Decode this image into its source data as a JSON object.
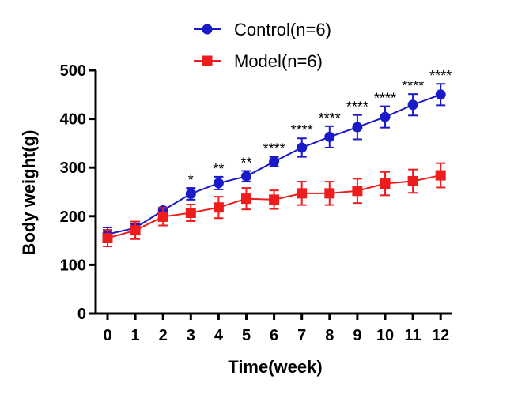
{
  "chart_data": {
    "type": "line",
    "xlabel": "Time(week)",
    "ylabel": "Body weight(g)",
    "x": [
      0,
      1,
      2,
      3,
      4,
      5,
      6,
      7,
      8,
      9,
      10,
      11,
      12
    ],
    "xlim": [
      0,
      12
    ],
    "ylim": [
      0,
      500
    ],
    "yticks": [
      0,
      100,
      200,
      300,
      400,
      500
    ],
    "grid": false,
    "legend_position": "top-center",
    "series": [
      {
        "name": "Control(n=6)",
        "color": "#1a1ac8",
        "marker": "circle",
        "values": [
          163,
          176,
          212,
          246,
          268,
          282,
          312,
          341,
          363,
          383,
          404,
          429,
          450
        ],
        "errors": [
          14,
          8,
          6,
          12,
          13,
          11,
          10,
          19,
          22,
          25,
          22,
          22,
          22
        ]
      },
      {
        "name": "Model(n=6)",
        "color": "#ee1c1c",
        "marker": "square",
        "values": [
          155,
          171,
          199,
          207,
          218,
          236,
          234,
          247,
          247,
          252,
          267,
          272,
          284
        ],
        "errors": [
          17,
          18,
          18,
          17,
          22,
          22,
          19,
          24,
          24,
          25,
          24,
          24,
          25
        ]
      }
    ],
    "annotations": [
      "",
      "",
      "",
      "*",
      "**",
      "**",
      "****",
      "****",
      "****",
      "****",
      "****",
      "****",
      "****"
    ]
  }
}
